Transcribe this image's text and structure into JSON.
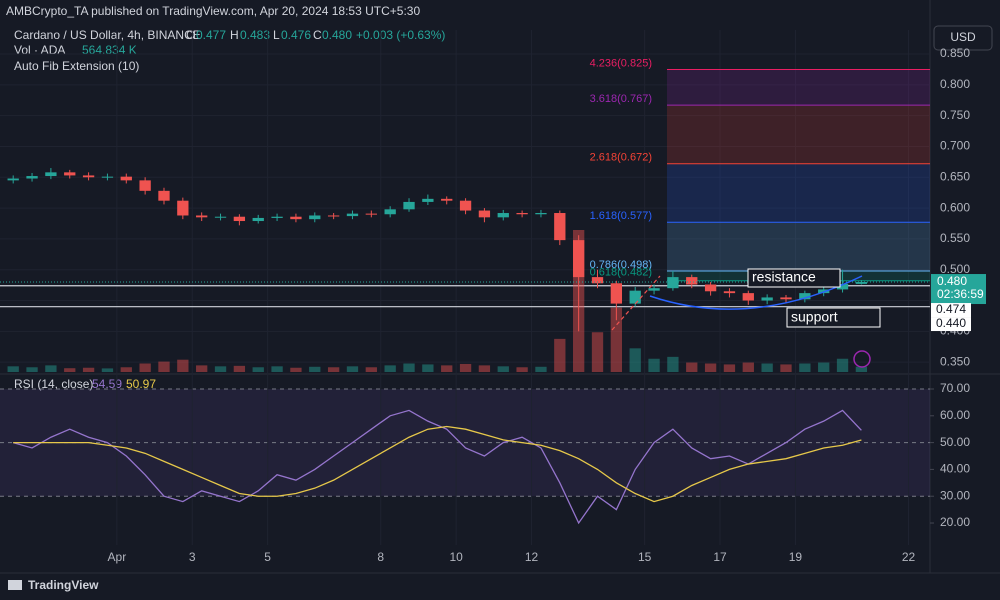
{
  "header": {
    "publisher": "AMBCrypto_TA published on TradingView.com, Apr 20, 2024 18:53 UTC+5:30",
    "brand": "TradingView",
    "change": "+0.003 (+0.63%)",
    "o": "O",
    "h": "H",
    "l": "L",
    "c": "C"
  },
  "chart_data": [
    {
      "type": "candlestick",
      "title": "Cardano / US Dollar, 4h, BINANCE",
      "currency": "USD",
      "x": [
        -2.75,
        -2.25,
        -1.75,
        -1.25,
        -0.75,
        -0.25,
        0.25,
        0.75,
        1.25,
        1.75,
        2.25,
        2.75,
        3.25,
        3.75,
        4.25,
        4.75,
        5.25,
        5.75,
        6.25,
        6.75,
        7.25,
        7.75,
        8.25,
        8.75,
        9.25,
        9.75,
        10.25,
        10.75,
        11.25,
        11.75,
        12.25,
        12.75,
        13.25,
        13.75,
        14.25,
        14.75,
        15.25,
        15.75,
        16.25,
        16.75,
        17.25,
        17.75,
        18.25,
        18.75,
        19.25,
        19.75
      ],
      "open": [
        0.645,
        0.648,
        0.652,
        0.658,
        0.653,
        0.65,
        0.651,
        0.645,
        0.628,
        0.612,
        0.588,
        0.585,
        0.586,
        0.579,
        0.584,
        0.586,
        0.582,
        0.588,
        0.587,
        0.591,
        0.59,
        0.598,
        0.61,
        0.615,
        0.612,
        0.596,
        0.585,
        0.592,
        0.59,
        0.592,
        0.548,
        0.488,
        0.478,
        0.445,
        0.466,
        0.47,
        0.488,
        0.476,
        0.465,
        0.462,
        0.45,
        0.455,
        0.452,
        0.462,
        0.468,
        0.477
      ],
      "high": [
        0.653,
        0.657,
        0.665,
        0.662,
        0.658,
        0.656,
        0.656,
        0.65,
        0.633,
        0.617,
        0.593,
        0.591,
        0.59,
        0.589,
        0.591,
        0.591,
        0.593,
        0.592,
        0.596,
        0.596,
        0.603,
        0.616,
        0.622,
        0.619,
        0.616,
        0.6,
        0.597,
        0.596,
        0.597,
        0.596,
        0.556,
        0.5,
        0.482,
        0.472,
        0.476,
        0.498,
        0.492,
        0.48,
        0.47,
        0.466,
        0.46,
        0.459,
        0.466,
        0.473,
        0.5,
        0.483
      ],
      "low": [
        0.64,
        0.643,
        0.647,
        0.648,
        0.645,
        0.645,
        0.64,
        0.622,
        0.606,
        0.582,
        0.579,
        0.58,
        0.572,
        0.575,
        0.579,
        0.577,
        0.577,
        0.582,
        0.582,
        0.585,
        0.585,
        0.594,
        0.605,
        0.606,
        0.59,
        0.577,
        0.58,
        0.585,
        0.585,
        0.54,
        0.4,
        0.47,
        0.418,
        0.44,
        0.46,
        0.466,
        0.47,
        0.458,
        0.455,
        0.443,
        0.444,
        0.446,
        0.447,
        0.457,
        0.463,
        0.476
      ],
      "close": [
        0.648,
        0.652,
        0.658,
        0.653,
        0.65,
        0.651,
        0.645,
        0.628,
        0.612,
        0.588,
        0.585,
        0.586,
        0.579,
        0.584,
        0.586,
        0.582,
        0.588,
        0.587,
        0.591,
        0.59,
        0.598,
        0.61,
        0.615,
        0.612,
        0.596,
        0.585,
        0.592,
        0.59,
        0.592,
        0.548,
        0.488,
        0.478,
        0.445,
        0.466,
        0.47,
        0.488,
        0.476,
        0.465,
        0.462,
        0.45,
        0.455,
        0.452,
        0.462,
        0.468,
        0.477,
        0.48
      ],
      "up_color": "#26a69a",
      "down_color": "#ef5350",
      "volume": {
        "name": "Vol · ADA",
        "last_label": "564.834 K",
        "values": [
          600,
          500,
          700,
          400,
          450,
          380,
          500,
          900,
          1100,
          1300,
          700,
          600,
          650,
          500,
          600,
          450,
          550,
          500,
          600,
          500,
          700,
          900,
          800,
          700,
          850,
          700,
          600,
          500,
          550,
          3500,
          15000,
          4200,
          6800,
          2500,
          1400,
          1600,
          1000,
          900,
          800,
          1000,
          900,
          800,
          900,
          1000,
          1400,
          564.834
        ]
      },
      "xlim": [
        -3.1,
        21.57
      ],
      "xticks": [
        {
          "value": 0,
          "label": "Apr"
        },
        {
          "value": 2,
          "label": "3"
        },
        {
          "value": 4,
          "label": "5"
        },
        {
          "value": 7,
          "label": "8"
        },
        {
          "value": 9,
          "label": "10"
        },
        {
          "value": 11,
          "label": "12"
        },
        {
          "value": 14,
          "label": "15"
        },
        {
          "value": 16,
          "label": "17"
        },
        {
          "value": 18,
          "label": "19"
        },
        {
          "value": 21,
          "label": "22"
        }
      ],
      "ylim": [
        0.334,
        0.889
      ],
      "yticks": [
        {
          "value": 0.35,
          "label": "0.350"
        },
        {
          "value": 0.4,
          "label": "0.400"
        },
        {
          "value": 0.45,
          "label": "0.450"
        },
        {
          "value": 0.5,
          "label": "0.500"
        },
        {
          "value": 0.55,
          "label": "0.550"
        },
        {
          "value": 0.6,
          "label": "0.600"
        },
        {
          "value": 0.65,
          "label": "0.650"
        },
        {
          "value": 0.7,
          "label": "0.700"
        },
        {
          "value": 0.75,
          "label": "0.750"
        },
        {
          "value": 0.8,
          "label": "0.800"
        },
        {
          "value": 0.85,
          "label": "0.850"
        }
      ],
      "fib": {
        "name": "Auto Fib Extension (10)",
        "levels": [
          {
            "value": 0.825,
            "label": "4.236(0.825)",
            "color": "#e91e63"
          },
          {
            "value": 0.767,
            "label": "3.618(0.767)",
            "color": "#9c27b0"
          },
          {
            "value": 0.672,
            "label": "2.618(0.672)",
            "color": "#f44336"
          },
          {
            "value": 0.577,
            "label": "1.618(0.577)",
            "color": "#2962ff"
          },
          {
            "value": 0.498,
            "label": "0.786(0.498)",
            "color": "#64b5f6"
          },
          {
            "value": 0.482,
            "label": "0.618(0.482)",
            "color": "#089981"
          }
        ]
      },
      "hlines": [
        {
          "value": 0.474,
          "label": "0.474"
        },
        {
          "value": 0.44,
          "label": "0.440"
        }
      ],
      "last_price": {
        "value": 0.48,
        "label": "0.480"
      },
      "countdown": "02:36:59",
      "annotations": [
        "resistance",
        "support"
      ]
    },
    {
      "type": "line",
      "title": "RSI (14, close)",
      "series": [
        {
          "color": "#9575cd",
          "values": [
            50,
            48,
            52,
            55,
            52,
            50,
            45,
            38,
            30,
            28,
            32,
            30,
            28,
            32,
            38,
            36,
            40,
            45,
            50,
            55,
            60,
            62,
            58,
            55,
            48,
            45,
            50,
            52,
            48,
            35,
            20,
            30,
            25,
            40,
            50,
            55,
            48,
            44,
            45,
            42,
            46,
            50,
            55,
            58,
            62,
            54.59
          ]
        },
        {
          "color": "#e6c84a",
          "values": [
            50,
            50,
            50,
            50,
            50,
            49,
            48,
            46,
            43,
            40,
            37,
            34,
            31,
            30,
            30,
            31,
            33,
            36,
            40,
            44,
            48,
            52,
            55,
            56,
            55,
            53,
            51,
            50,
            49,
            47,
            44,
            40,
            35,
            31,
            28,
            30,
            34,
            37,
            40,
            42,
            43,
            44,
            46,
            48,
            49,
            50.97
          ]
        }
      ],
      "ylim": [
        11.8,
        74.1
      ],
      "yticks": [
        {
          "value": 20,
          "label": "20.00"
        },
        {
          "value": 30,
          "label": "30.00"
        },
        {
          "value": 40,
          "label": "40.00"
        },
        {
          "value": 50,
          "label": "50.00"
        },
        {
          "value": 60,
          "label": "60.00"
        },
        {
          "value": 70,
          "label": "70.00"
        }
      ],
      "bands": {
        "upper": 70,
        "middle": 50,
        "lower": 30
      }
    }
  ]
}
